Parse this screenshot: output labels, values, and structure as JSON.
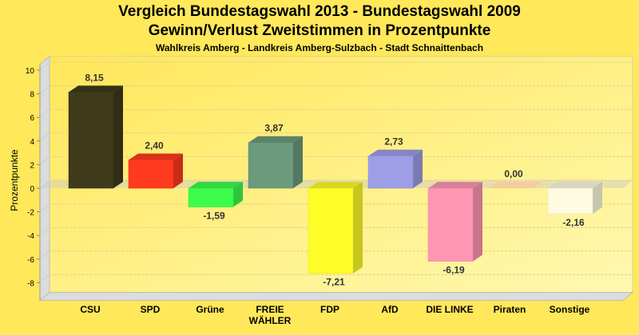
{
  "chart_data": {
    "type": "bar",
    "title": "Vergleich Bundestagswahl 2013 - Bundestagswahl 2009",
    "subtitle": "Gewinn/Verlust Zweitstimmen in Prozentpunkte",
    "subsubtitle": "Wahlkreis Amberg - Landkreis Amberg-Sulzbach - Stadt Schnaittenbach",
    "xlabel": "",
    "ylabel": "Prozentpunkte",
    "ylim": [
      -9.5,
      10.5
    ],
    "yticks": [
      10,
      8,
      6,
      4,
      2,
      0,
      -2,
      -4,
      -6,
      -8
    ],
    "grid": true,
    "categories": [
      [
        "CSU"
      ],
      [
        "SPD"
      ],
      [
        "Grüne"
      ],
      [
        "FREIE",
        "WÄHLER"
      ],
      [
        "FDP"
      ],
      [
        "AfD"
      ],
      [
        "DIE LINKE"
      ],
      [
        "Piraten"
      ],
      [
        "Sonstige"
      ]
    ],
    "values": [
      8.15,
      2.4,
      -1.59,
      3.87,
      -7.21,
      2.73,
      -6.19,
      0.0,
      -2.16
    ],
    "value_labels": [
      "8,15",
      "2,40",
      "-1,59",
      "3,87",
      "-7,21",
      "2,73",
      "-6,19",
      "0,00",
      "-2,16"
    ],
    "colors": [
      "#3f3a1a",
      "#ff3a1e",
      "#3cfd4c",
      "#6c9a7c",
      "#fffd28",
      "#9e9ee6",
      "#ff96b4",
      "#f7c99a",
      "#fffbe0"
    ]
  }
}
